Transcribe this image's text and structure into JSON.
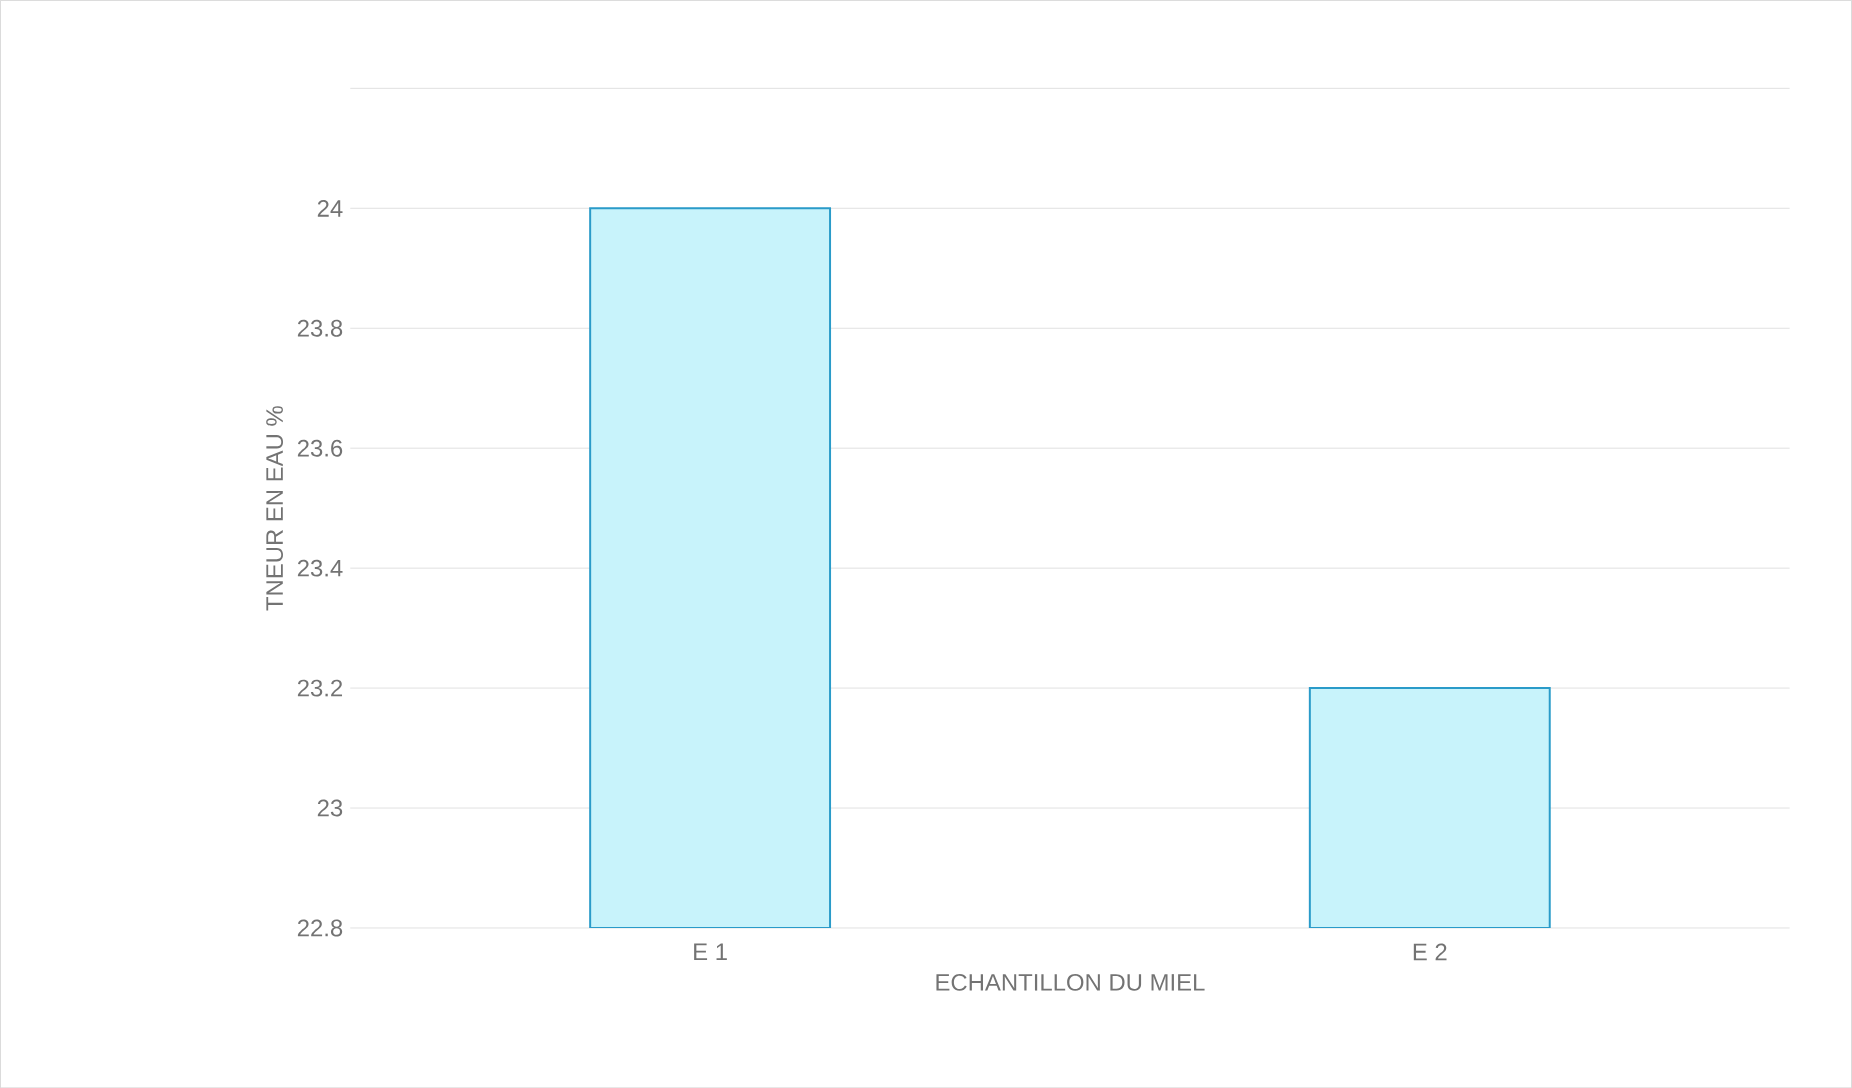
{
  "chart_data": {
    "type": "bar",
    "xlabel": "ECHANTILLON DU MIEL",
    "ylabel": "TNEUR EN EAU %",
    "categories": [
      "E 1",
      "E 2"
    ],
    "values": [
      24.0,
      23.2
    ],
    "color": "#c8f3fb",
    "ylim": [
      22.8,
      24.2
    ],
    "yticks": [
      22.8,
      23,
      23.2,
      23.4,
      23.6,
      23.8,
      24,
      {
        "value": 24.2,
        "label": null
      }
    ],
    "grid": "y"
  }
}
